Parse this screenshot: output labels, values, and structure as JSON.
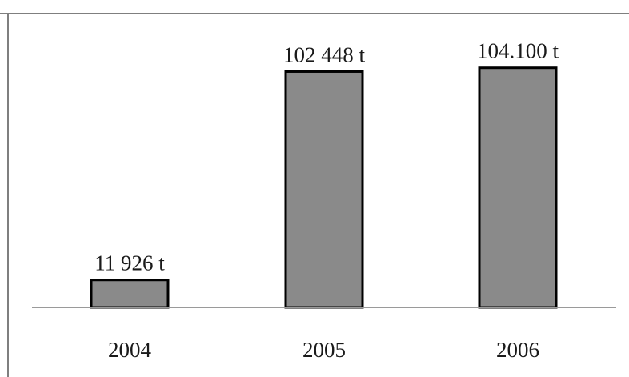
{
  "chart_data": {
    "type": "bar",
    "categories": [
      "2004",
      "2005",
      "2006"
    ],
    "values": [
      11926,
      102448,
      104100
    ],
    "data_labels": [
      "11 926 t",
      "102 448 t",
      "104.100 t"
    ],
    "title": "",
    "xlabel": "",
    "ylabel": "",
    "ylim": [
      0,
      120000
    ],
    "grid": false,
    "legend": "none",
    "colors": {
      "bar_fill": "#8a8a8a",
      "bar_stroke": "#000000",
      "axis": "#9a9a9a",
      "frame": "#7f7f7f"
    }
  }
}
